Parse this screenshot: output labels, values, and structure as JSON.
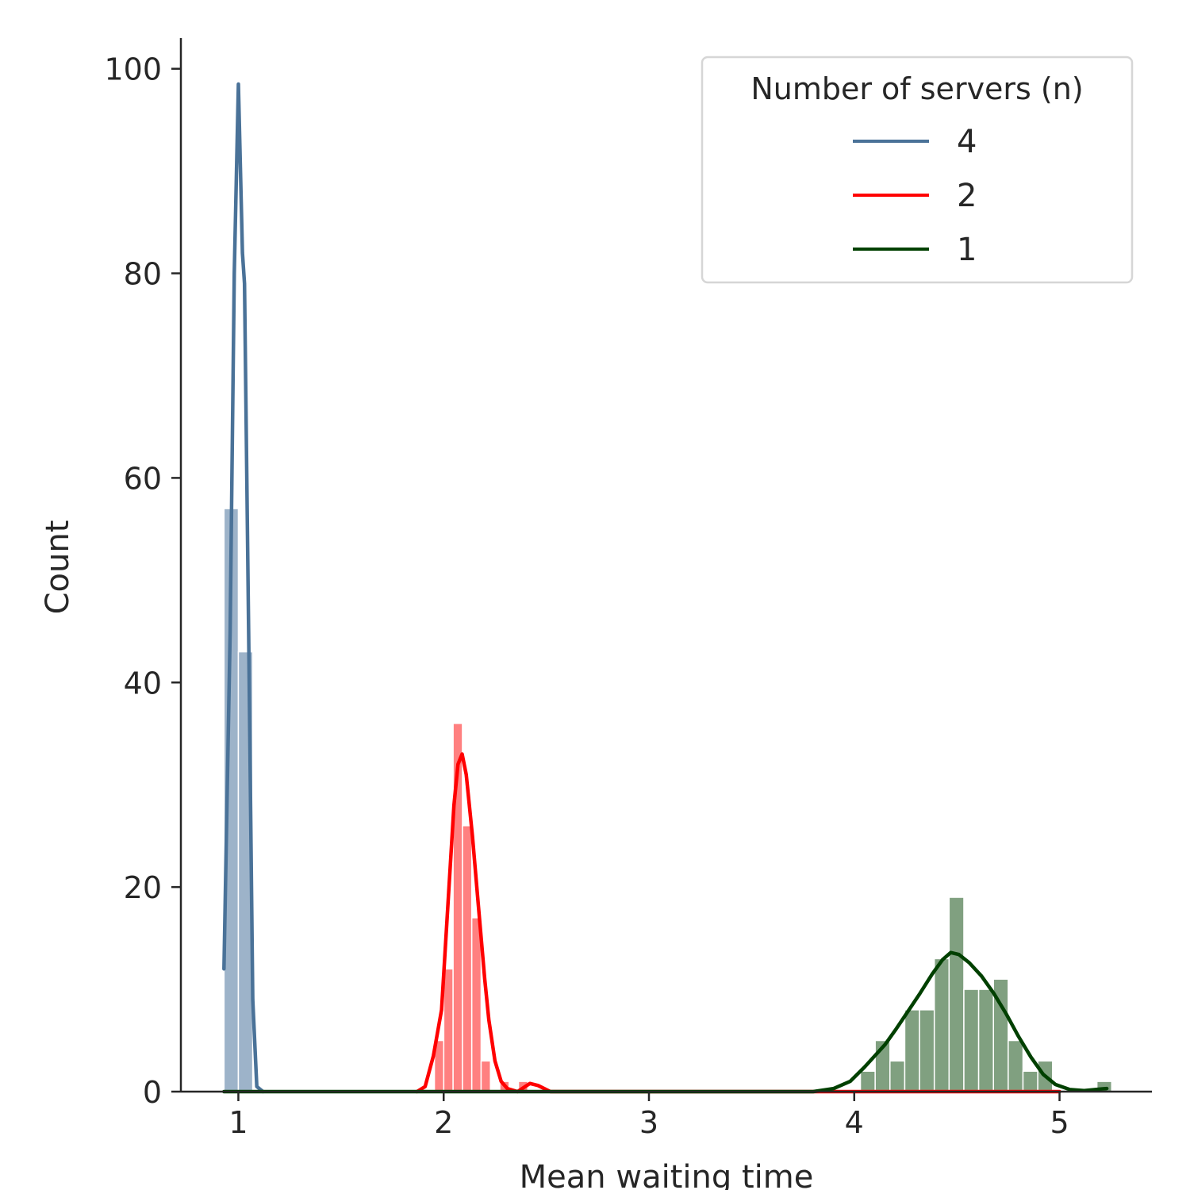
{
  "chart_data": {
    "type": "bar",
    "title": "",
    "xlabel": "Mean waiting time",
    "ylabel": "Count",
    "xlim": [
      0.72,
      5.45
    ],
    "ylim": [
      0,
      103
    ],
    "xticks": [
      1,
      2,
      3,
      4,
      5
    ],
    "yticks": [
      0,
      20,
      40,
      60,
      80,
      100
    ],
    "grid": false,
    "legend": {
      "title": "Number of servers (n)",
      "placement": "top-right"
    },
    "series": [
      {
        "name": "4",
        "color": "#4a7298",
        "bar_color": "#9db3c9",
        "bin_width": 0.07,
        "bins": [
          [
            0.93,
            57
          ],
          [
            1.0,
            43
          ]
        ],
        "kde": [
          [
            0.93,
            12
          ],
          [
            0.96,
            45
          ],
          [
            0.98,
            80
          ],
          [
            1.0,
            98.5
          ],
          [
            1.02,
            82
          ],
          [
            1.03,
            79
          ],
          [
            1.05,
            45
          ],
          [
            1.07,
            9
          ],
          [
            1.09,
            0.5
          ],
          [
            1.12,
            0
          ]
        ]
      },
      {
        "name": "2",
        "color": "#ff0000",
        "bar_color": "#ff8080",
        "bin_width": 0.0455,
        "bins": [
          [
            1.955,
            5
          ],
          [
            2.0005,
            12
          ],
          [
            2.046,
            36
          ],
          [
            2.0915,
            26
          ],
          [
            2.137,
            17
          ],
          [
            2.1825,
            3
          ],
          [
            2.228,
            0
          ],
          [
            2.2735,
            1
          ],
          [
            2.319,
            0
          ],
          [
            2.3645,
            1
          ]
        ],
        "kde": [
          [
            1.87,
            0
          ],
          [
            1.91,
            0.5
          ],
          [
            1.95,
            3.5
          ],
          [
            1.99,
            8
          ],
          [
            2.02,
            18
          ],
          [
            2.05,
            28
          ],
          [
            2.07,
            32
          ],
          [
            2.09,
            33
          ],
          [
            2.11,
            31
          ],
          [
            2.14,
            25
          ],
          [
            2.17,
            18
          ],
          [
            2.2,
            11
          ],
          [
            2.22,
            7
          ],
          [
            2.25,
            3
          ],
          [
            2.28,
            1
          ],
          [
            2.31,
            0.3
          ],
          [
            2.36,
            0
          ],
          [
            2.42,
            0.8
          ],
          [
            2.46,
            0.6
          ],
          [
            2.52,
            0
          ],
          [
            5.0,
            0
          ]
        ]
      },
      {
        "name": "1",
        "color": "#004000",
        "bar_color": "#80a080",
        "bin_width": 0.072,
        "bins": [
          [
            4.03,
            2
          ],
          [
            4.102,
            5
          ],
          [
            4.174,
            3
          ],
          [
            4.246,
            8
          ],
          [
            4.318,
            8
          ],
          [
            4.39,
            13
          ],
          [
            4.462,
            19
          ],
          [
            4.534,
            10
          ],
          [
            4.606,
            10
          ],
          [
            4.678,
            11
          ],
          [
            4.75,
            5
          ],
          [
            4.822,
            2
          ],
          [
            4.894,
            3
          ],
          [
            4.966,
            0
          ],
          [
            5.038,
            0
          ],
          [
            5.11,
            0
          ],
          [
            5.182,
            1
          ]
        ],
        "kde": [
          [
            0.93,
            0
          ],
          [
            3.8,
            0
          ],
          [
            3.9,
            0.3
          ],
          [
            3.98,
            1.0
          ],
          [
            4.05,
            2.4
          ],
          [
            4.1,
            3.5
          ],
          [
            4.15,
            4.6
          ],
          [
            4.2,
            6.0
          ],
          [
            4.26,
            7.8
          ],
          [
            4.32,
            9.6
          ],
          [
            4.38,
            11.5
          ],
          [
            4.43,
            12.9
          ],
          [
            4.47,
            13.6
          ],
          [
            4.51,
            13.4
          ],
          [
            4.56,
            12.6
          ],
          [
            4.62,
            11.3
          ],
          [
            4.68,
            9.6
          ],
          [
            4.74,
            7.6
          ],
          [
            4.8,
            5.4
          ],
          [
            4.86,
            3.4
          ],
          [
            4.92,
            1.7
          ],
          [
            4.98,
            0.7
          ],
          [
            5.05,
            0.2
          ],
          [
            5.12,
            0.1
          ],
          [
            5.2,
            0.25
          ],
          [
            5.23,
            0.3
          ]
        ]
      }
    ]
  }
}
